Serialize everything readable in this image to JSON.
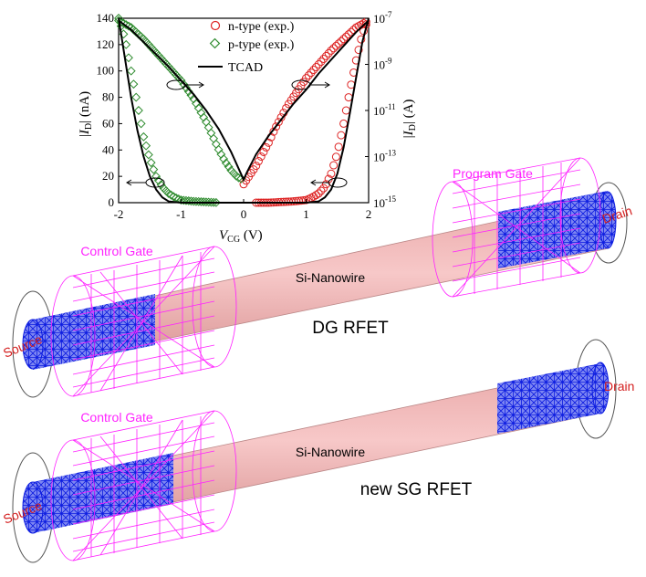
{
  "chart_data": {
    "type": "line",
    "xlabel": "V_CG (V)",
    "xlabel_main": "V",
    "xlabel_sub": "CG",
    "xlabel_unit": "(V)",
    "ylabel_left": "|I_D| (nA)",
    "ylabel_left_unit": "(nA)",
    "ylabel_right": "|I_D| (A)",
    "ylabel_right_unit": "(A)",
    "xlim": [
      -2,
      2
    ],
    "ylim_left": [
      0,
      140
    ],
    "ylim_right_log10": [
      -15,
      -7
    ],
    "x_ticks": [
      "-2",
      "-1",
      "0",
      "1",
      "2"
    ],
    "y_ticks_left": [
      "0",
      "20",
      "40",
      "60",
      "80",
      "100",
      "120",
      "140"
    ],
    "y_ticks_right": [
      "10",
      "10",
      "10",
      "10",
      "10"
    ],
    "y_ticks_right_exp": [
      "-15",
      "-13",
      "-11",
      "-9",
      "-7"
    ],
    "legend_position": "top-right",
    "series": [
      {
        "name": "n-type (exp.)",
        "color": "#dd2222",
        "marker": "circle",
        "linear_x": [
          0.2,
          0.4,
          0.6,
          0.8,
          1.0,
          1.1,
          1.2,
          1.3,
          1.4,
          1.5,
          1.6,
          1.7,
          1.8,
          1.9,
          2.0
        ],
        "linear_y": [
          0,
          0,
          0.5,
          1,
          2,
          4,
          7,
          12,
          22,
          38,
          60,
          85,
          108,
          128,
          140
        ],
        "log_x": [
          0.0,
          0.05,
          0.1,
          0.15,
          0.2,
          0.3,
          0.4,
          0.5,
          0.6,
          0.7,
          0.8,
          0.9,
          1.0,
          1.2,
          1.4,
          1.6,
          1.8,
          2.0
        ],
        "log_y": [
          -14.2,
          -14.0,
          -13.8,
          -13.6,
          -13.4,
          -12.9,
          -12.4,
          -11.8,
          -11.3,
          -10.8,
          -10.4,
          -10.0,
          -9.6,
          -9.0,
          -8.4,
          -7.9,
          -7.4,
          -7.1
        ]
      },
      {
        "name": "p-type (exp.)",
        "color": "#2e8b2e",
        "marker": "diamond",
        "linear_x": [
          -2.0,
          -1.9,
          -1.8,
          -1.7,
          -1.6,
          -1.5,
          -1.4,
          -1.3,
          -1.2,
          -1.1,
          -1.0,
          -0.8,
          -0.6,
          -0.4
        ],
        "linear_y": [
          140,
          125,
          100,
          75,
          50,
          33,
          20,
          12,
          7,
          4,
          2,
          1,
          0.5,
          0
        ],
        "log_x": [
          -2.0,
          -1.8,
          -1.6,
          -1.4,
          -1.2,
          -1.0,
          -0.9,
          -0.8,
          -0.7,
          -0.6,
          -0.5,
          -0.4,
          -0.3,
          -0.2,
          -0.1,
          0.0
        ],
        "log_y": [
          -7.1,
          -7.4,
          -7.9,
          -8.5,
          -9.1,
          -9.7,
          -10.1,
          -10.5,
          -11.0,
          -11.5,
          -12.1,
          -12.7,
          -13.2,
          -13.6,
          -13.9,
          -14.0
        ]
      },
      {
        "name": "TCAD",
        "color": "#000000",
        "marker": "line",
        "linear_x": [
          -2.0,
          -1.9,
          -1.8,
          -1.7,
          -1.6,
          -1.5,
          -1.4,
          -1.3,
          -1.2,
          -1.0,
          -0.5,
          0.0,
          0.5,
          1.0,
          1.2,
          1.3,
          1.4,
          1.5,
          1.6,
          1.7,
          1.8,
          1.9,
          2.0
        ],
        "linear_y": [
          140,
          110,
          80,
          55,
          35,
          20,
          10,
          4,
          1,
          0,
          0,
          0,
          0,
          0,
          1,
          4,
          10,
          22,
          42,
          68,
          95,
          122,
          140
        ],
        "log_x": [
          -2.0,
          -1.8,
          -1.5,
          -1.2,
          -1.0,
          -0.8,
          -0.6,
          -0.4,
          -0.2,
          -0.05,
          0.0,
          0.05,
          0.2,
          0.4,
          0.6,
          0.8,
          1.0,
          1.2,
          1.5,
          1.8,
          2.0
        ],
        "log_y": [
          -7.1,
          -7.5,
          -8.3,
          -9.1,
          -9.7,
          -10.3,
          -11.0,
          -11.8,
          -12.8,
          -13.7,
          -14.0,
          -13.7,
          -12.9,
          -12.1,
          -11.4,
          -10.7,
          -10.1,
          -9.4,
          -8.5,
          -7.6,
          -7.1
        ]
      }
    ]
  },
  "diagram": {
    "dg_title": "DG RFET",
    "sg_title": "new SG RFET",
    "dg_labels": {
      "control_gate": "Control Gate",
      "program_gate": "Program Gate",
      "nanowire": "Si-Nanowire",
      "source": "Source",
      "drain": "Drain"
    },
    "sg_labels": {
      "control_gate": "Control Gate",
      "nanowire": "Si-Nanowire",
      "source": "Source",
      "drain": "Drain"
    },
    "colors": {
      "gate": "#ff22ff",
      "contact": "#1a2ee0",
      "nanowire": "#f4b5b5",
      "label": "#d42020"
    }
  }
}
